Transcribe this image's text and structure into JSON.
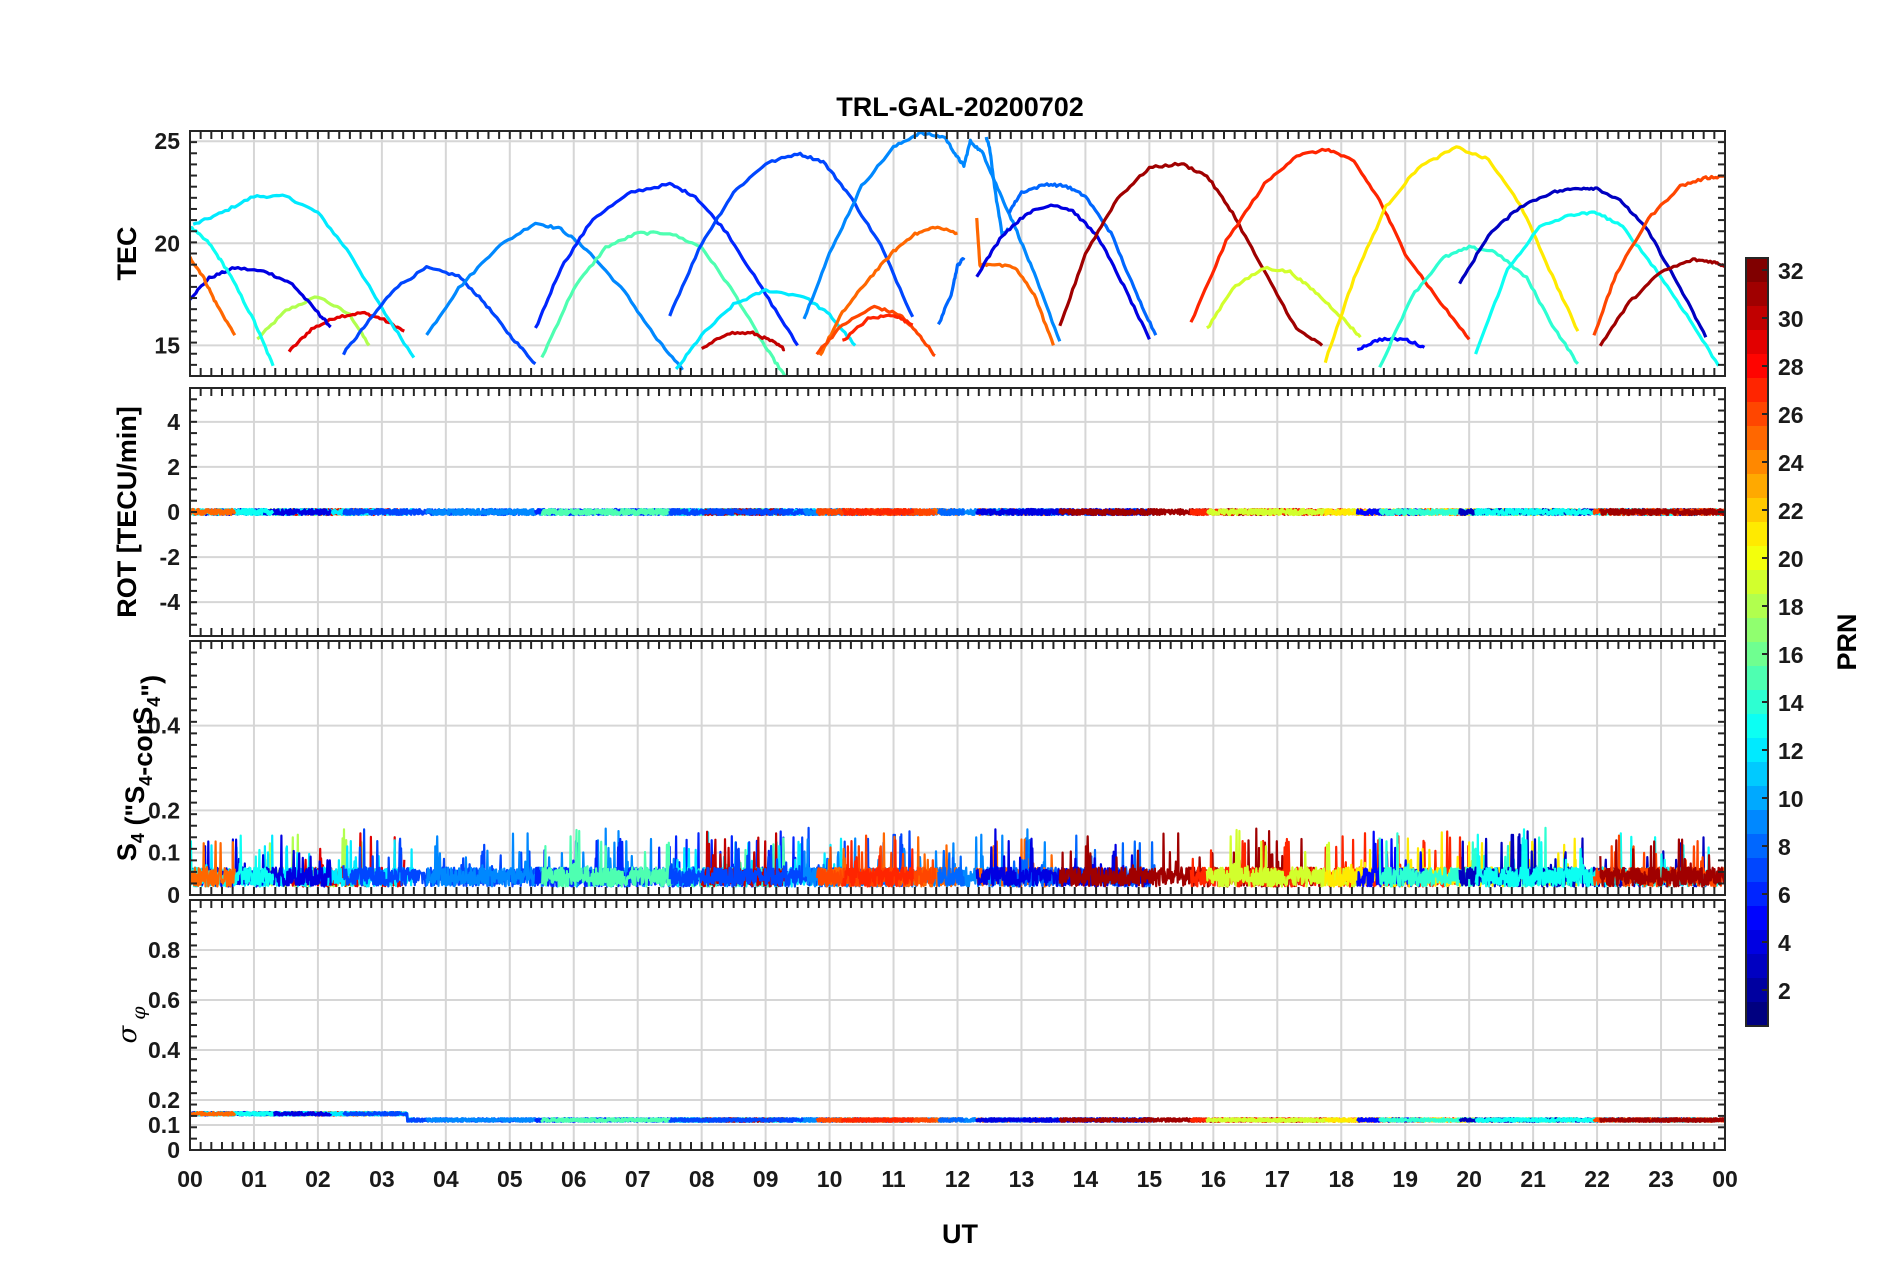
{
  "chart_data": {
    "type": "line",
    "title": "TRL-GAL-20200702",
    "xlabel": "UT",
    "x_ticks": [
      "00",
      "01",
      "02",
      "03",
      "04",
      "05",
      "06",
      "07",
      "08",
      "09",
      "10",
      "11",
      "12",
      "13",
      "14",
      "15",
      "16",
      "17",
      "18",
      "19",
      "20",
      "21",
      "22",
      "23",
      "00"
    ],
    "xlim": [
      0,
      24
    ],
    "grid": true,
    "colorbar": {
      "label": "PRN",
      "range": [
        1,
        32
      ],
      "ticks": [
        "2",
        "4",
        "6",
        "8",
        "10",
        "12",
        "14",
        "16",
        "18",
        "20",
        "22",
        "24",
        "26",
        "28",
        "30",
        "32"
      ],
      "colormap": "jet"
    },
    "panels": [
      {
        "id": "tec",
        "ylabel": "TEC",
        "ylim": [
          13.5,
          25.5
        ],
        "yticks": [
          "15",
          "20",
          "25"
        ],
        "series": [
          {
            "prn": 18,
            "x": [
              1.05,
              1.5,
              2.0,
              2.5,
              2.8
            ],
            "y": [
              15.3,
              16.7,
              17.4,
              16.5,
              15.0
            ]
          },
          {
            "prn": 29,
            "x": [
              1.55,
              1.9,
              2.3,
              2.7,
              3.0,
              3.35
            ],
            "y": [
              14.7,
              15.8,
              16.4,
              16.6,
              16.3,
              15.7
            ]
          },
          {
            "prn": 12,
            "x": [
              0.05,
              0.5,
              1.0,
              1.5,
              2.0,
              2.5,
              3.0,
              3.5
            ],
            "y": [
              20.9,
              21.5,
              22.3,
              22.3,
              21.5,
              19.5,
              16.8,
              14.4
            ]
          },
          {
            "prn": 4,
            "x": [
              0.0,
              0.3,
              0.7,
              1.2,
              1.6,
              2.0,
              2.2
            ],
            "y": [
              17.3,
              18.3,
              18.8,
              18.6,
              18.0,
              16.6,
              15.9
            ]
          },
          {
            "prn": 13,
            "x": [
              0.0,
              0.3,
              0.6,
              1.0,
              1.3
            ],
            "y": [
              20.8,
              20.0,
              18.6,
              16.2,
              14.0
            ]
          },
          {
            "prn": 25,
            "x": [
              0.0,
              0.2,
              0.4,
              0.7
            ],
            "y": [
              19.3,
              18.4,
              17.1,
              15.5
            ]
          },
          {
            "prn": 7,
            "x": [
              2.4,
              2.8,
              3.2,
              3.7,
              4.2,
              4.6,
              5.0,
              5.4
            ],
            "y": [
              14.6,
              16.2,
              17.8,
              18.8,
              18.4,
              17.1,
              15.5,
              14.1
            ]
          },
          {
            "prn": 9,
            "x": [
              3.7,
              4.2,
              4.8,
              5.4,
              5.8,
              6.2,
              6.8,
              7.3,
              7.7
            ],
            "y": [
              15.5,
              17.8,
              19.8,
              21.0,
              20.7,
              19.7,
              17.6,
              15.3,
              13.8
            ]
          },
          {
            "prn": 6,
            "x": [
              5.4,
              5.8,
              6.3,
              6.9,
              7.5,
              7.9,
              8.4,
              9.0,
              9.5
            ],
            "y": [
              15.8,
              18.8,
              21.2,
              22.5,
              22.9,
              22.3,
              20.5,
              17.5,
              15.0
            ]
          },
          {
            "prn": 15,
            "x": [
              5.5,
              6.0,
              6.5,
              7.0,
              7.5,
              8.0,
              8.5,
              9.0,
              9.3
            ],
            "y": [
              14.4,
              17.8,
              19.8,
              20.5,
              20.5,
              19.8,
              17.6,
              14.9,
              13.5
            ]
          },
          {
            "prn": 12,
            "x": [
              7.6,
              8.0,
              8.5,
              9.0,
              9.6,
              10.0,
              10.4
            ],
            "y": [
              13.8,
              15.5,
              17.0,
              17.7,
              17.4,
              16.5,
              15.0
            ]
          },
          {
            "prn": 30,
            "x": [
              8.0,
              8.4,
              8.8,
              9.1,
              9.3
            ],
            "y": [
              14.8,
              15.6,
              15.6,
              15.2,
              14.8
            ]
          },
          {
            "prn": 7,
            "x": [
              7.5,
              8.0,
              8.5,
              9.0,
              9.5,
              9.9,
              10.3,
              10.8,
              11.3
            ],
            "y": [
              16.5,
              20.0,
              22.5,
              23.9,
              24.4,
              24.0,
              22.4,
              19.9,
              16.4
            ]
          },
          {
            "prn": 9,
            "x": [
              9.6,
              10.0,
              10.5,
              11.0,
              11.4,
              11.8,
              12.0,
              12.1,
              12.2,
              12.4,
              12.6,
              12.9,
              13.2,
              13.6
            ],
            "y": [
              16.3,
              19.5,
              22.8,
              24.7,
              25.4,
              25.2,
              24.2,
              23.8,
              25.0,
              24.4,
              22.9,
              20.8,
              18.5,
              15.2
            ]
          },
          {
            "prn": 25,
            "x": [
              9.85,
              10.2,
              10.6,
              11.0,
              11.3,
              11.65,
              12.0
            ],
            "y": [
              14.5,
              16.6,
              18.2,
              19.6,
              20.4,
              20.8,
              20.5
            ]
          },
          {
            "prn": 26,
            "x": [
              9.8,
              10.2,
              10.7,
              11.1,
              11.4,
              11.65
            ],
            "y": [
              14.6,
              16.0,
              16.9,
              16.5,
              15.5,
              14.5
            ]
          },
          {
            "prn": 27,
            "x": [
              10.2,
              10.6,
              11.0,
              11.3
            ],
            "y": [
              15.2,
              16.3,
              16.5,
              16.0
            ]
          },
          {
            "prn": 25,
            "x": [
              12.3,
              12.35,
              12.5,
              12.9,
              13.2,
              13.5
            ],
            "y": [
              21.3,
              18.9,
              19.0,
              18.8,
              17.5,
              15.0
            ]
          },
          {
            "prn": 9,
            "x": [
              12.45,
              12.5,
              12.6,
              12.7,
              12.8
            ],
            "y": [
              25.2,
              24.7,
              22.3,
              20.4,
              20.7
            ]
          },
          {
            "prn": 8,
            "x": [
              11.7,
              11.9,
              12.0,
              12.1
            ],
            "y": [
              16.0,
              17.5,
              18.9,
              19.3
            ]
          },
          {
            "prn": 8,
            "x": [
              12.8,
              13.0,
              13.4,
              13.7,
              14.0,
              14.4,
              14.8,
              15.1
            ],
            "y": [
              21.5,
              22.5,
              22.9,
              22.8,
              22.3,
              20.5,
              17.5,
              15.5
            ]
          },
          {
            "prn": 4,
            "x": [
              12.3,
              12.7,
              13.1,
              13.5,
              13.8,
              14.2,
              14.6,
              15.0
            ],
            "y": [
              18.4,
              20.4,
              21.5,
              21.9,
              21.6,
              20.3,
              17.9,
              15.3
            ]
          },
          {
            "prn": 31,
            "x": [
              13.6,
              14.0,
              14.5,
              15.0,
              15.5,
              15.9,
              16.3,
              16.8,
              17.3,
              17.7
            ],
            "y": [
              15.9,
              19.5,
              22.2,
              23.7,
              23.9,
              23.3,
              21.5,
              18.6,
              15.8,
              15.0
            ]
          },
          {
            "prn": 27,
            "x": [
              15.65,
              16.2,
              16.8,
              17.3,
              17.8,
              18.2,
              18.6,
              19.0,
              19.5,
              20.0
            ],
            "y": [
              16.1,
              20.1,
              22.9,
              24.3,
              24.6,
              24.0,
              22.1,
              19.5,
              17.3,
              15.3
            ]
          },
          {
            "prn": 19,
            "x": [
              15.9,
              16.3,
              16.8,
              17.2,
              17.6,
              18.0,
              18.3
            ],
            "y": [
              15.8,
              17.8,
              18.8,
              18.6,
              17.6,
              16.4,
              15.4
            ]
          },
          {
            "prn": 21,
            "x": [
              17.75,
              18.2,
              18.7,
              19.2,
              19.8,
              20.3,
              20.8,
              21.3,
              21.7
            ],
            "y": [
              14.2,
              18.3,
              21.8,
              23.7,
              24.7,
              24.1,
              21.9,
              18.4,
              15.7
            ]
          },
          {
            "prn": 5,
            "x": [
              18.25,
              18.6,
              19.0,
              19.3
            ],
            "y": [
              14.8,
              15.3,
              15.3,
              14.9
            ]
          },
          {
            "prn": 14,
            "x": [
              18.6,
              19.1,
              19.6,
              20.0,
              20.4,
              20.9,
              21.3,
              21.7
            ],
            "y": [
              13.9,
              17.4,
              19.3,
              19.8,
              19.6,
              18.3,
              16.0,
              14.1
            ]
          },
          {
            "prn": 3,
            "x": [
              19.85,
              20.3,
              20.8,
              21.3,
              21.7,
              22.0,
              22.4,
              22.8,
              23.3,
              23.7
            ],
            "y": [
              18.0,
              20.4,
              21.8,
              22.5,
              22.7,
              22.7,
              22.0,
              20.6,
              17.8,
              15.4
            ]
          },
          {
            "prn": 13,
            "x": [
              20.1,
              20.6,
              21.1,
              21.6,
              22.0,
              22.4,
              22.9,
              23.4,
              23.9
            ],
            "y": [
              14.6,
              18.7,
              20.8,
              21.4,
              21.5,
              20.8,
              18.8,
              16.5,
              14.0
            ]
          },
          {
            "prn": 26,
            "x": [
              21.95,
              22.3,
              22.8,
              23.3,
              23.7,
              24.0
            ],
            "y": [
              15.5,
              18.5,
              21.2,
              22.8,
              23.2,
              23.3
            ]
          },
          {
            "prn": 31,
            "x": [
              22.05,
              22.5,
              23.0,
              23.5,
              23.8,
              24.0
            ],
            "y": [
              15.0,
              17.1,
              18.6,
              19.2,
              19.1,
              18.9
            ]
          }
        ]
      },
      {
        "id": "rot",
        "ylabel": "ROT [TECU/min]",
        "ylim": [
          -5.5,
          5.5
        ],
        "yticks": [
          "-4",
          "-2",
          "0",
          "2",
          "4"
        ],
        "baseline": 0,
        "noise_amplitude": 0.12
      },
      {
        "id": "s4",
        "ylabel": "S",
        "ylabel_subscript": "4",
        "ylabel_suffix": " (\"S",
        "ylabel_suffix_subscript": "4",
        "ylabel_tail": "-corS",
        "ylabel_tail_subscript": "4",
        "ylabel_end": "\")",
        "ylim": [
          0,
          0.6
        ],
        "yticks": [
          "0",
          "0.1",
          "0.2",
          "0.4"
        ],
        "typical_level": 0.05,
        "peak_level": 0.15
      },
      {
        "id": "sigma_phi",
        "ylabel_symbol": "σ",
        "ylabel_subscript": "φ",
        "ylim": [
          0,
          1.0
        ],
        "yticks": [
          "0",
          "0.1",
          "0.2",
          "0.4",
          "0.6",
          "0.8"
        ],
        "typical_level": 0.12,
        "early_level": 0.145
      }
    ]
  }
}
